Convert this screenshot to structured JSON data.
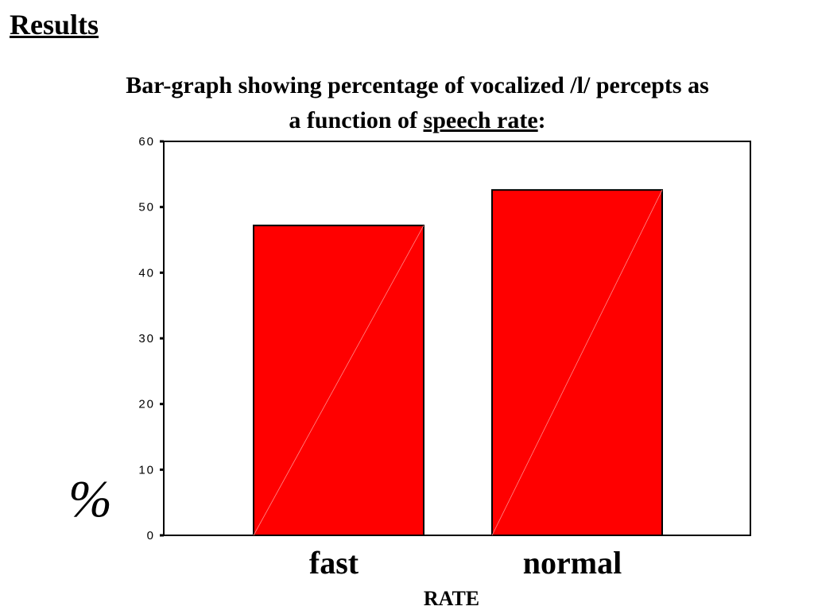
{
  "slide": {
    "title": "Results",
    "subtitle_part1": "Bar-graph showing percentage of vocalized /l/ percepts as",
    "subtitle_part2": "a function of ",
    "subtitle_underlined": "speech rate",
    "subtitle_end": ":"
  },
  "chart_data": {
    "type": "bar",
    "categories": [
      "fast",
      "normal"
    ],
    "values": [
      47.2,
      52.6
    ],
    "xlabel": "RATE",
    "ylabel": "%",
    "ylim": [
      0,
      60
    ],
    "yticks": [
      0,
      10,
      20,
      30,
      40,
      50,
      60
    ],
    "yticks_text": [
      "0",
      "10",
      "20",
      "30",
      "40",
      "50",
      "60"
    ],
    "grid": false,
    "bar_color": "#ff0000",
    "bar_stroke": "#000000"
  }
}
